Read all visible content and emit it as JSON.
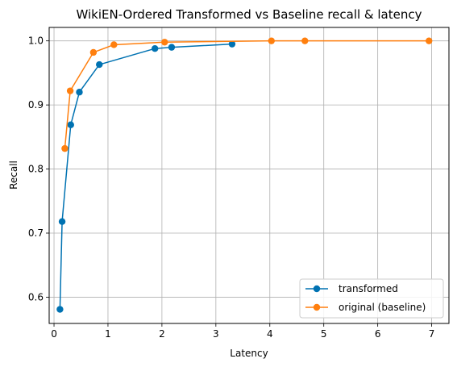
{
  "chart_data": {
    "type": "line",
    "title": "WikiEN-Ordered Transformed vs Baseline recall & latency",
    "xlabel": "Latency",
    "ylabel": "Recall",
    "xlim": [
      -0.09,
      7.32
    ],
    "ylim": [
      0.559,
      1.021
    ],
    "xticks": [
      0,
      1,
      2,
      3,
      4,
      5,
      6,
      7
    ],
    "yticks": [
      0.6,
      0.7,
      0.8,
      0.9,
      1.0
    ],
    "ytick_labels": [
      "0.6",
      "0.7",
      "0.8",
      "0.9",
      "1.0"
    ],
    "grid": true,
    "legend_position": "lower right",
    "series": [
      {
        "name": "transformed",
        "color": "#0072b2",
        "x": [
          0.11,
          0.15,
          0.31,
          0.47,
          0.84,
          1.87,
          2.18,
          3.3
        ],
        "y": [
          0.581,
          0.718,
          0.869,
          0.92,
          0.963,
          0.988,
          0.99,
          0.995
        ]
      },
      {
        "name": "original (baseline)",
        "color": "#ff7f0e",
        "x": [
          0.2,
          0.3,
          0.73,
          1.11,
          2.05,
          4.03,
          4.65,
          6.95
        ],
        "y": [
          0.832,
          0.922,
          0.982,
          0.994,
          0.998,
          1.0,
          1.0,
          1.0
        ]
      }
    ]
  }
}
